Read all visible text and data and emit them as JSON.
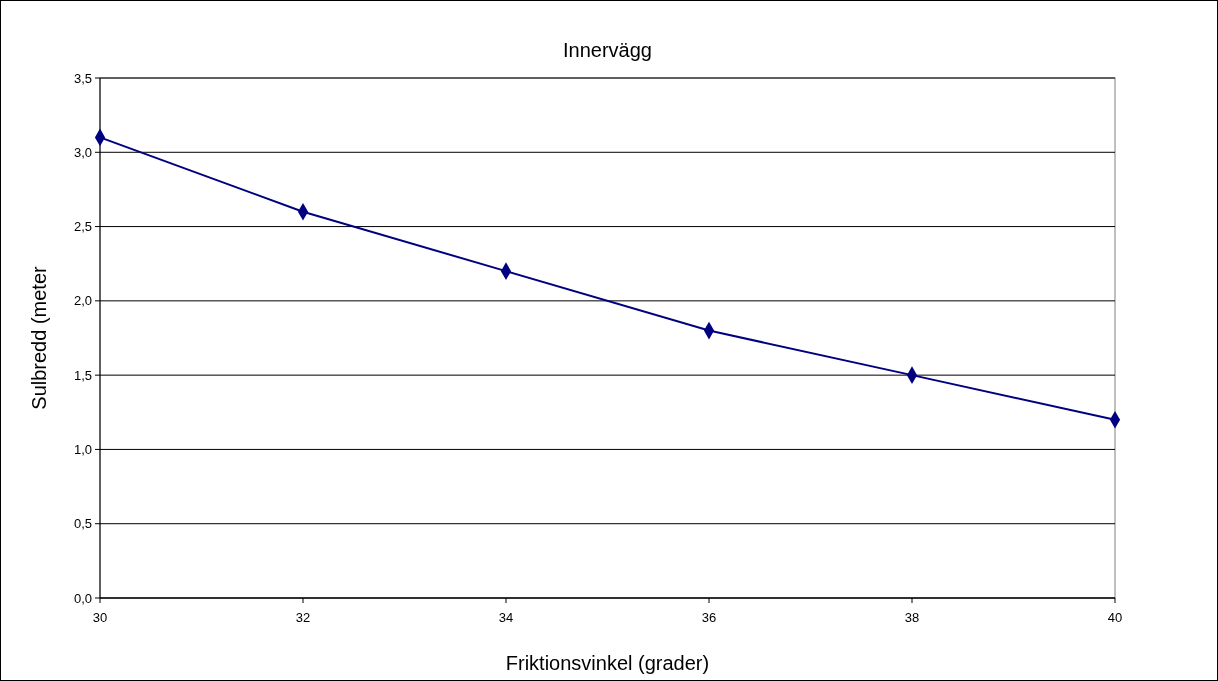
{
  "chart_data": {
    "type": "line",
    "title": "Innervägg",
    "xlabel": "Friktionsvinkel (grader)",
    "ylabel": "Sulbredd (meter",
    "x": [
      30,
      32,
      34,
      36,
      38,
      40
    ],
    "series": [
      {
        "color": "#000080",
        "values": [
          3.1,
          2.6,
          2.2,
          1.8,
          1.5,
          1.2
        ]
      }
    ],
    "xlim": [
      30,
      40
    ],
    "xticks": [
      30,
      32,
      34,
      36,
      38,
      40
    ],
    "ylim": [
      0,
      3.5
    ],
    "yticks": [
      {
        "value": 0,
        "label": "0,0"
      },
      {
        "value": 0.5,
        "label": "0,5"
      },
      {
        "value": 1,
        "label": "1,0"
      },
      {
        "value": 1.5,
        "label": "1,5"
      },
      {
        "value": 2,
        "label": "2,0"
      },
      {
        "value": 2.5,
        "label": "2,5"
      },
      {
        "value": 3,
        "label": "3,0"
      },
      {
        "value": 3.5,
        "label": "3,5"
      }
    ],
    "grid": "y",
    "marker": "diamond",
    "line_style": "solid"
  }
}
